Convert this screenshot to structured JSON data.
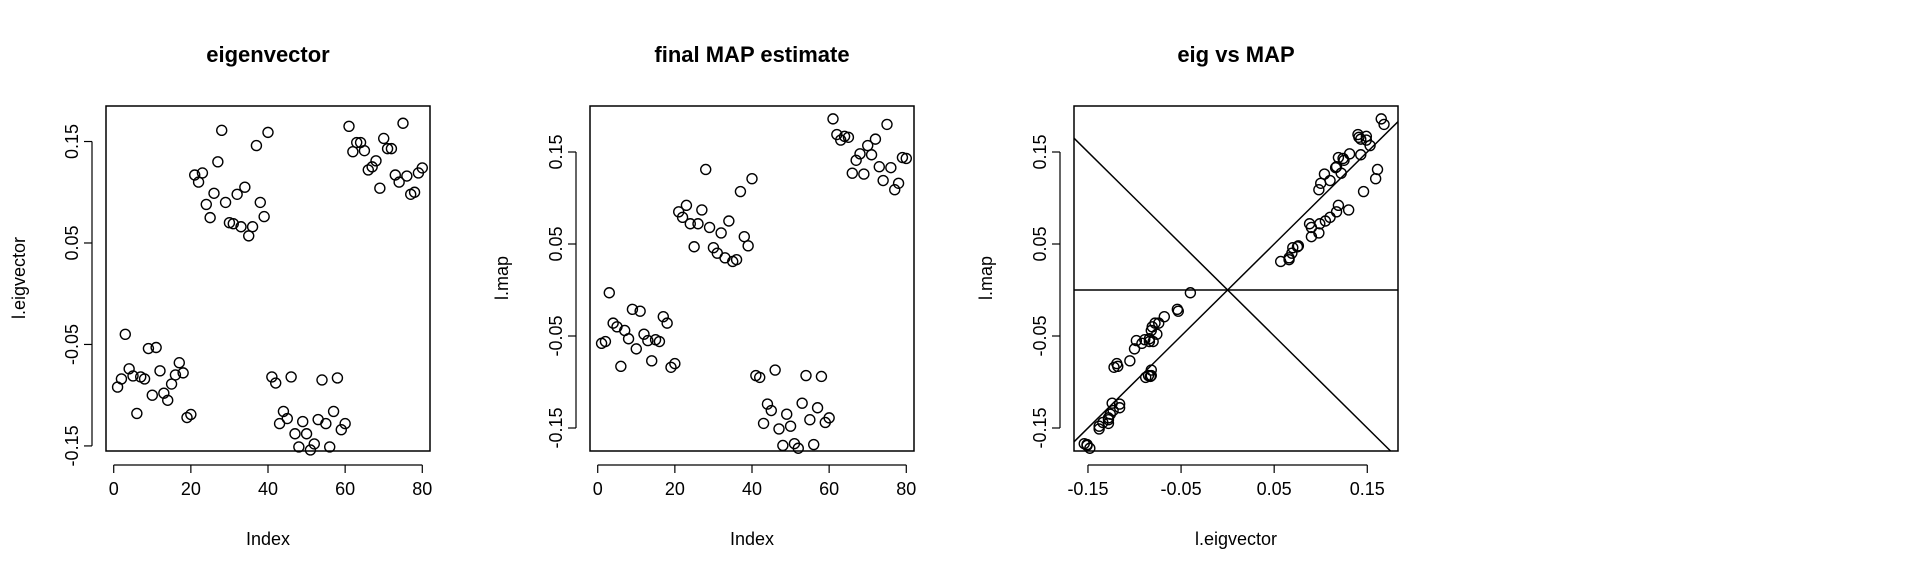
{
  "chart_data": [
    {
      "type": "scatter",
      "title": "eigenvector",
      "xlabel": "Index",
      "ylabel": "l.eigvector",
      "xlim": [
        -2,
        82
      ],
      "ylim": [
        -0.155,
        0.185
      ],
      "x_ticks": [
        0,
        20,
        40,
        60,
        80
      ],
      "x_tick_labels": [
        "0",
        "20",
        "40",
        "60",
        "80"
      ],
      "y_ticks": [
        -0.15,
        -0.05,
        0.05,
        0.15
      ],
      "y_tick_labels": [
        "-0.15",
        "-0.05",
        "0.05",
        "0.15"
      ],
      "marker": "open-circle",
      "x": [
        1,
        2,
        3,
        4,
        5,
        6,
        7,
        8,
        9,
        10,
        11,
        12,
        13,
        14,
        15,
        16,
        17,
        18,
        19,
        20,
        21,
        22,
        23,
        24,
        25,
        26,
        27,
        28,
        29,
        30,
        31,
        32,
        33,
        34,
        35,
        36,
        37,
        38,
        39,
        40,
        41,
        42,
        43,
        44,
        45,
        46,
        47,
        48,
        49,
        50,
        51,
        52,
        53,
        54,
        55,
        56,
        57,
        58,
        59,
        60,
        61,
        62,
        63,
        64,
        65,
        66,
        67,
        68,
        69,
        70,
        71,
        72,
        73,
        74,
        75,
        76,
        77,
        78,
        79,
        80
      ],
      "y": [
        -0.092,
        -0.084,
        -0.04,
        -0.074,
        -0.081,
        -0.118,
        -0.082,
        -0.084,
        -0.054,
        -0.1,
        -0.053,
        -0.076,
        -0.098,
        -0.105,
        -0.089,
        -0.08,
        -0.068,
        -0.078,
        -0.122,
        -0.119,
        0.117,
        0.11,
        0.119,
        0.088,
        0.075,
        0.099,
        0.13,
        0.161,
        0.09,
        0.07,
        0.069,
        0.098,
        0.066,
        0.105,
        0.057,
        0.066,
        0.146,
        0.09,
        0.076,
        0.159,
        -0.082,
        -0.088,
        -0.128,
        -0.116,
        -0.123,
        -0.082,
        -0.138,
        -0.151,
        -0.126,
        -0.138,
        -0.154,
        -0.148,
        -0.124,
        -0.085,
        -0.128,
        -0.151,
        -0.116,
        -0.083,
        -0.134,
        -0.128,
        0.165,
        0.14,
        0.149,
        0.149,
        0.141,
        0.122,
        0.125,
        0.131,
        0.104,
        0.153,
        0.143,
        0.143,
        0.117,
        0.11,
        0.168,
        0.116,
        0.098,
        0.1,
        0.119,
        0.124
      ]
    },
    {
      "type": "scatter",
      "title": "final MAP estimate",
      "xlabel": "Index",
      "ylabel": "l.map",
      "xlim": [
        -2,
        82
      ],
      "ylim": [
        -0.175,
        0.2
      ],
      "x_ticks": [
        0,
        20,
        40,
        60,
        80
      ],
      "x_tick_labels": [
        "0",
        "20",
        "40",
        "60",
        "80"
      ],
      "y_ticks": [
        -0.15,
        -0.05,
        0.05,
        0.15
      ],
      "y_tick_labels": [
        "-0.15",
        "-0.05",
        "0.05",
        "0.15"
      ],
      "marker": "open-circle",
      "x": [
        1,
        2,
        3,
        4,
        5,
        6,
        7,
        8,
        9,
        10,
        11,
        12,
        13,
        14,
        15,
        16,
        17,
        18,
        19,
        20,
        21,
        22,
        23,
        24,
        25,
        26,
        27,
        28,
        29,
        30,
        31,
        32,
        33,
        34,
        35,
        36,
        37,
        38,
        39,
        40,
        41,
        42,
        43,
        44,
        45,
        46,
        47,
        48,
        49,
        50,
        51,
        52,
        53,
        54,
        55,
        56,
        57,
        58,
        59,
        60,
        61,
        62,
        63,
        64,
        65,
        66,
        67,
        68,
        69,
        70,
        71,
        72,
        73,
        74,
        75,
        76,
        77,
        78,
        79,
        80
      ],
      "y": [
        -0.058,
        -0.056,
        -0.003,
        -0.036,
        -0.04,
        -0.083,
        -0.044,
        -0.053,
        -0.021,
        -0.064,
        -0.023,
        -0.048,
        -0.055,
        -0.077,
        -0.054,
        -0.056,
        -0.029,
        -0.036,
        -0.084,
        -0.08,
        0.085,
        0.079,
        0.092,
        0.072,
        0.047,
        0.072,
        0.087,
        0.131,
        0.068,
        0.046,
        0.04,
        0.062,
        0.035,
        0.075,
        0.031,
        0.033,
        0.107,
        0.058,
        0.048,
        0.121,
        -0.093,
        -0.095,
        -0.145,
        -0.124,
        -0.131,
        -0.087,
        -0.151,
        -0.169,
        -0.135,
        -0.148,
        -0.167,
        -0.172,
        -0.123,
        -0.093,
        -0.141,
        -0.168,
        -0.128,
        -0.094,
        -0.144,
        -0.139,
        0.186,
        0.169,
        0.163,
        0.167,
        0.166,
        0.127,
        0.141,
        0.148,
        0.126,
        0.157,
        0.147,
        0.164,
        0.134,
        0.119,
        0.18,
        0.133,
        0.109,
        0.116,
        0.144,
        0.143
      ]
    },
    {
      "type": "scatter",
      "title": "eig vs MAP",
      "xlabel": "l.eigvector",
      "ylabel": "l.map",
      "xlim": [
        -0.165,
        0.183
      ],
      "ylim": [
        -0.175,
        0.2
      ],
      "x_ticks": [
        -0.15,
        -0.05,
        0.05,
        0.15
      ],
      "x_tick_labels": [
        "-0.15",
        "-0.05",
        "0.05",
        "0.15"
      ],
      "y_ticks": [
        -0.15,
        -0.05,
        0.05,
        0.15
      ],
      "y_tick_labels": [
        "-0.15",
        "-0.05",
        "0.05",
        "0.15"
      ],
      "marker": "open-circle",
      "reference_lines": [
        {
          "kind": "horizontal",
          "y": 0
        },
        {
          "kind": "abline",
          "intercept": 0,
          "slope": 1
        },
        {
          "kind": "abline",
          "intercept": 0,
          "slope": -1
        }
      ],
      "x": [
        -0.092,
        -0.084,
        -0.04,
        -0.074,
        -0.081,
        -0.118,
        -0.082,
        -0.084,
        -0.054,
        -0.1,
        -0.053,
        -0.076,
        -0.098,
        -0.105,
        -0.089,
        -0.08,
        -0.068,
        -0.078,
        -0.122,
        -0.119,
        0.117,
        0.11,
        0.119,
        0.088,
        0.075,
        0.099,
        0.13,
        0.161,
        0.09,
        0.07,
        0.069,
        0.098,
        0.066,
        0.105,
        0.057,
        0.066,
        0.146,
        0.09,
        0.076,
        0.159,
        -0.082,
        -0.088,
        -0.128,
        -0.116,
        -0.123,
        -0.082,
        -0.138,
        -0.151,
        -0.126,
        -0.138,
        -0.154,
        -0.148,
        -0.124,
        -0.085,
        -0.128,
        -0.151,
        -0.116,
        -0.083,
        -0.134,
        -0.128,
        0.165,
        0.14,
        0.149,
        0.149,
        0.141,
        0.122,
        0.125,
        0.131,
        0.104,
        0.153,
        0.143,
        0.143,
        0.117,
        0.11,
        0.168,
        0.116,
        0.098,
        0.1,
        0.119,
        0.124
      ],
      "y": [
        -0.058,
        -0.056,
        -0.003,
        -0.036,
        -0.04,
        -0.083,
        -0.044,
        -0.053,
        -0.021,
        -0.064,
        -0.023,
        -0.048,
        -0.055,
        -0.077,
        -0.054,
        -0.056,
        -0.029,
        -0.036,
        -0.084,
        -0.08,
        0.085,
        0.079,
        0.092,
        0.072,
        0.047,
        0.072,
        0.087,
        0.131,
        0.068,
        0.046,
        0.04,
        0.062,
        0.035,
        0.075,
        0.031,
        0.033,
        0.107,
        0.058,
        0.048,
        0.121,
        -0.093,
        -0.095,
        -0.145,
        -0.124,
        -0.131,
        -0.087,
        -0.151,
        -0.169,
        -0.135,
        -0.148,
        -0.167,
        -0.172,
        -0.123,
        -0.093,
        -0.141,
        -0.168,
        -0.128,
        -0.094,
        -0.144,
        -0.139,
        0.186,
        0.169,
        0.163,
        0.167,
        0.166,
        0.127,
        0.141,
        0.148,
        0.126,
        0.157,
        0.147,
        0.164,
        0.134,
        0.119,
        0.18,
        0.133,
        0.109,
        0.116,
        0.144,
        0.143
      ]
    }
  ]
}
